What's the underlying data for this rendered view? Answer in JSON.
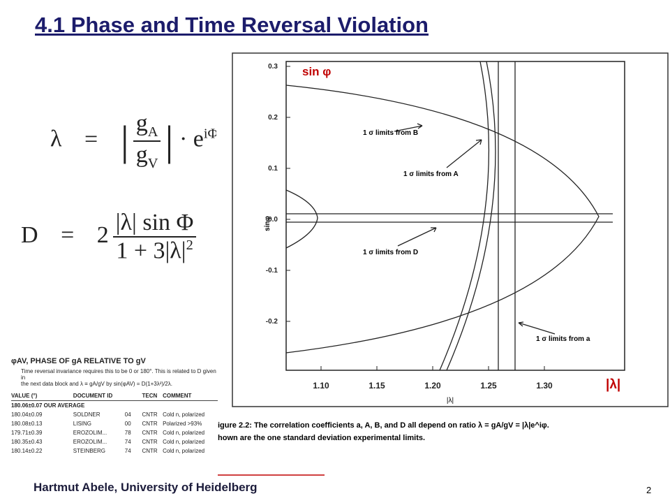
{
  "title": "4.1 Phase and Time Reversal Violation",
  "equations": {
    "lambda": {
      "lhs": "λ",
      "eq": "=",
      "num": "g",
      "num_sub": "A",
      "den": "g",
      "den_sub": "V",
      "dot": "·",
      "exp_base": "e",
      "exp": "iΦ"
    },
    "d": {
      "lhs": "D",
      "eq": "=",
      "coef": "2",
      "num": "|λ| sin Φ",
      "den": "1 + 3|λ|",
      "den_sup": "2"
    }
  },
  "figure": {
    "y_label": "sinφ",
    "x_label": "|λ|",
    "yticks": [
      "0.3",
      "0.2",
      "0.1",
      "0.0",
      "-0.1",
      "-0.2"
    ],
    "xticks": [
      "1.10",
      "1.15",
      "1.20",
      "1.25",
      "1.30"
    ],
    "annotations": [
      "1 σ limits from B",
      "1 σ limits from A",
      "1 σ limits from D",
      "1 σ limits from a"
    ],
    "overlay_y": "sin φ",
    "overlay_x": "|λ|",
    "caption": [
      "igure 2.2: The correlation coefficients a, A, B, and D all depend on ratio λ = gA/gV = |λ|e^iφ.",
      "hown are the one standard deviation experimental limits."
    ]
  },
  "table": {
    "heading": "φAV, PHASE OF gA RELATIVE TO gV",
    "description": [
      "Time reversal invariance requires this to be 0 or 180°. This is related to D given in",
      "the next data block and λ ≡ gA/gV by sin(φAV) = D(1+3λ²)/2λ."
    ],
    "columns": [
      "VALUE (°)",
      "DOCUMENT ID",
      "TECN",
      "COMMENT"
    ],
    "average": "180.06±0.07 OUR AVERAGE",
    "rows": [
      [
        "180.04±0.09",
        "SOLDNER",
        "04",
        "CNTR",
        "Cold n, polarized"
      ],
      [
        "180.08±0.13",
        "LISING",
        "00",
        "CNTR",
        "Polarized >93%"
      ],
      [
        "179.71±0.39",
        "EROZOLIM...",
        "78",
        "CNTR",
        "Cold n, polarized"
      ],
      [
        "180.35±0.43",
        "EROZOLIM...",
        "74",
        "CNTR",
        "Cold n, polarized"
      ],
      [
        "180.14±0.22",
        "STEINBERG",
        "74",
        "CNTR",
        "Cold n, polarized"
      ]
    ]
  },
  "footer": {
    "author": "Hartmut Abele, University of Heidelberg",
    "page": "2"
  }
}
